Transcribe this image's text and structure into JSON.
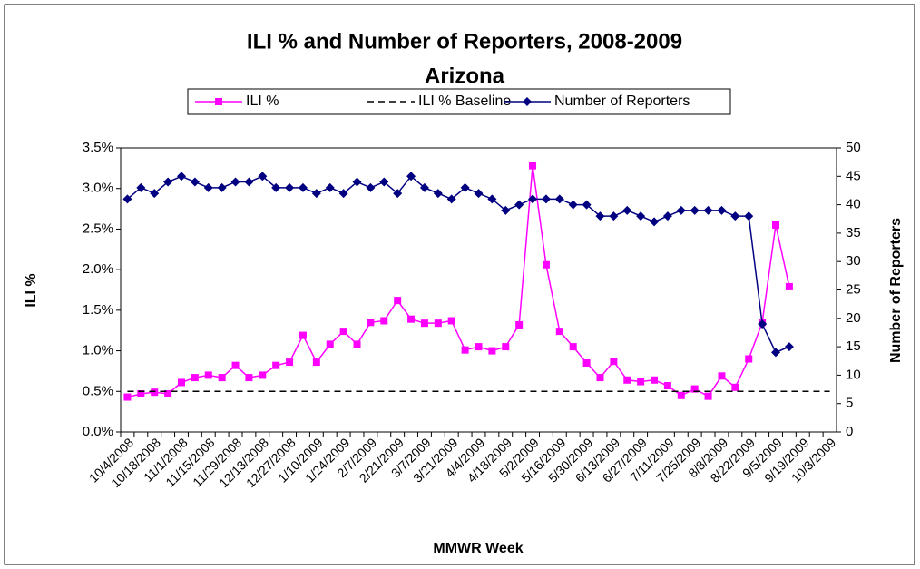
{
  "chart_data": {
    "type": "line",
    "title": "ILI % and Number of Reporters, 2008-2009",
    "subtitle": "Arizona",
    "x_label": "MMWR Week",
    "y_label": "ILI %",
    "y2_label": "Number of Reporters",
    "legend": "top",
    "grid": false,
    "categories": [
      "10/4/2008",
      null,
      "10/18/2008",
      null,
      "11/1/2008",
      null,
      "11/15/2008",
      null,
      "11/29/2008",
      null,
      "12/13/2008",
      null,
      "12/27/2008",
      null,
      "1/10/2009",
      null,
      "1/24/2009",
      null,
      "2/7/2009",
      null,
      "2/21/2009",
      null,
      "3/7/2009",
      null,
      "3/21/2009",
      null,
      "4/4/2009",
      null,
      "4/18/2009",
      null,
      "5/2/2009",
      null,
      "5/16/2009",
      null,
      "5/30/2009",
      null,
      "6/13/2009",
      null,
      "6/27/2009",
      null,
      "7/11/2009",
      null,
      "7/25/2009",
      null,
      "8/8/2009",
      null,
      "8/22/2009",
      null,
      "9/5/2009",
      null,
      "9/19/2009",
      null,
      "10/3/2009"
    ],
    "ylim": [
      0,
      3.5
    ],
    "yticks": [
      {
        "value": 0,
        "label": "0.0%"
      },
      {
        "value": 0.5,
        "label": "0.5%"
      },
      {
        "value": 1,
        "label": "1.0%"
      },
      {
        "value": 1.5,
        "label": "1.5%"
      },
      {
        "value": 2,
        "label": "2.0%"
      },
      {
        "value": 2.5,
        "label": "2.5%"
      },
      {
        "value": 3,
        "label": "3.0%"
      },
      {
        "value": 3.5,
        "label": "3.5%"
      }
    ],
    "y2lim": [
      0,
      50
    ],
    "y2ticks": [
      0,
      5,
      10,
      15,
      20,
      25,
      30,
      35,
      40,
      45,
      50
    ],
    "series": [
      {
        "name": "ILI %",
        "color": "#ff00ff",
        "marker": "square",
        "dash": false,
        "values": [
          0.43,
          0.47,
          0.49,
          0.47,
          0.61,
          0.67,
          0.7,
          0.67,
          0.82,
          0.67,
          0.7,
          0.82,
          0.86,
          1.19,
          0.86,
          1.08,
          1.24,
          1.08,
          1.35,
          1.37,
          1.62,
          1.39,
          1.34,
          1.34,
          1.37,
          1.01,
          1.05,
          1.0,
          1.05,
          1.32,
          3.28,
          2.06,
          1.24,
          1.05,
          0.85,
          0.67,
          0.87,
          0.64,
          0.62,
          0.64,
          0.57,
          0.45,
          0.53,
          0.44,
          0.69,
          0.55,
          0.9,
          1.35,
          2.55,
          1.79,
          null,
          null,
          null
        ]
      },
      {
        "name": "ILI % Baseline",
        "color": "#000000",
        "marker": "none",
        "dash": true,
        "values": [
          0.5,
          0.5,
          0.5,
          0.5,
          0.5,
          0.5,
          0.5,
          0.5,
          0.5,
          0.5,
          0.5,
          0.5,
          0.5,
          0.5,
          0.5,
          0.5,
          0.5,
          0.5,
          0.5,
          0.5,
          0.5,
          0.5,
          0.5,
          0.5,
          0.5,
          0.5,
          0.5,
          0.5,
          0.5,
          0.5,
          0.5,
          0.5,
          0.5,
          0.5,
          0.5,
          0.5,
          0.5,
          0.5,
          0.5,
          0.5,
          0.5,
          0.5,
          0.5,
          0.5,
          0.5,
          0.5,
          0.5,
          0.5,
          0.5,
          0.5,
          0.5,
          0.5,
          0.5
        ]
      },
      {
        "name": "Number of Reporters",
        "color": "#000080",
        "marker": "diamond",
        "dash": false,
        "axis": "y2",
        "values": [
          41,
          43,
          42,
          44,
          45,
          44,
          43,
          43,
          44,
          44,
          45,
          43,
          43,
          43,
          42,
          43,
          42,
          44,
          43,
          44,
          42,
          45,
          43,
          42,
          41,
          43,
          42,
          41,
          39,
          40,
          41,
          41,
          41,
          40,
          40,
          38,
          38,
          39,
          38,
          37,
          38,
          39,
          39,
          39,
          39,
          38,
          38,
          19,
          14,
          15,
          null,
          null,
          null
        ]
      }
    ]
  }
}
